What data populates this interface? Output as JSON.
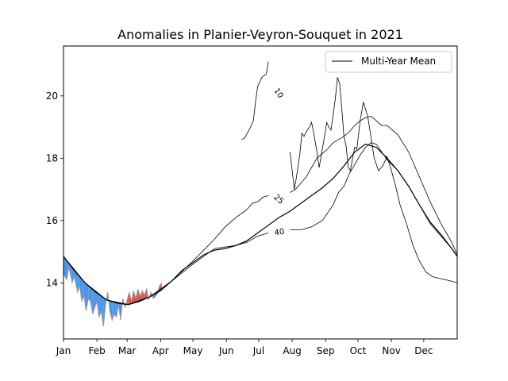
{
  "chart_data": {
    "type": "line",
    "title": "Anomalies in Planier-Veyron-Souquet in 2021",
    "xlabel": "",
    "ylabel": "",
    "xlim": [
      0,
      365
    ],
    "ylim": [
      12.2,
      21.6
    ],
    "x_tick_labels": [
      "Jan",
      "Feb",
      "Mar",
      "Apr",
      "May",
      "Jun",
      "Jul",
      "Aug",
      "Sep",
      "Oct",
      "Nov",
      "Dec"
    ],
    "x_tick_days": [
      0,
      31,
      59,
      90,
      120,
      151,
      181,
      212,
      243,
      273,
      304,
      334
    ],
    "y_ticks": [
      14,
      16,
      18,
      20
    ],
    "legend": {
      "location": "top-right",
      "entries": [
        "Multi-Year Mean"
      ]
    },
    "colors": {
      "above": "#d9534f",
      "below": "#4d96e8",
      "observed": "#999999",
      "mean": "#000000"
    },
    "mean": {
      "name": "Multi-Year Mean",
      "x": [
        0,
        10,
        20,
        30,
        40,
        50,
        60,
        70,
        80,
        90,
        100,
        110,
        120,
        130,
        140,
        150,
        160,
        170,
        180,
        190,
        200,
        210,
        220,
        230,
        240,
        250,
        260,
        270,
        280,
        290,
        300,
        310,
        320,
        330,
        340,
        350,
        360,
        365
      ],
      "y": [
        14.85,
        14.4,
        14.0,
        13.7,
        13.45,
        13.35,
        13.3,
        13.4,
        13.55,
        13.75,
        14.05,
        14.4,
        14.65,
        14.9,
        15.05,
        15.1,
        15.2,
        15.35,
        15.6,
        15.85,
        16.1,
        16.3,
        16.55,
        16.8,
        17.05,
        17.35,
        17.75,
        18.2,
        18.45,
        18.35,
        18.0,
        17.6,
        17.1,
        16.5,
        15.95,
        15.55,
        15.1,
        14.85
      ]
    },
    "observed": {
      "x": [
        0,
        3,
        5,
        8,
        10,
        13,
        15,
        17,
        19,
        21,
        23,
        25,
        27,
        29,
        31,
        33,
        35,
        37,
        39,
        41,
        43,
        45,
        47,
        49,
        51,
        53,
        55,
        57,
        59,
        61,
        63,
        65,
        67,
        69,
        71,
        73,
        75,
        77,
        79,
        81,
        83,
        85,
        87,
        89,
        91
      ],
      "y": [
        14.3,
        14.1,
        14.5,
        14.0,
        14.2,
        13.7,
        13.9,
        13.4,
        13.6,
        13.1,
        13.5,
        13.4,
        13.0,
        13.2,
        13.4,
        12.9,
        13.1,
        12.6,
        13.3,
        13.7,
        13.1,
        12.8,
        13.0,
        12.9,
        13.3,
        12.8,
        13.5,
        13.2,
        13.45,
        13.7,
        13.4,
        13.75,
        13.5,
        13.8,
        13.55,
        13.75,
        13.6,
        13.8,
        13.45,
        13.7,
        13.5,
        13.55,
        13.65,
        13.9,
        14.0
      ]
    },
    "contours": [
      {
        "level": "10",
        "label_day": 200,
        "x": [
          165,
          168,
          172,
          176,
          178,
          180,
          184,
          188,
          190,
          192,
          196,
          200,
          203,
          206,
          208,
          210,
          212,
          214,
          216,
          219,
          221,
          223,
          226,
          228,
          230,
          232,
          235,
          237,
          240,
          242,
          244,
          246,
          248,
          250,
          252,
          254,
          256,
          258,
          260,
          262,
          264,
          266,
          268,
          270,
          272,
          275,
          278,
          282,
          285,
          288,
          292,
          296,
          300,
          304,
          308,
          312,
          318,
          324,
          330,
          336,
          342,
          348,
          354,
          360,
          365
        ],
        "y": [
          18.6,
          18.65,
          18.9,
          19.2,
          19.8,
          20.3,
          20.6,
          20.7,
          21.1,
          21.05,
          20.3,
          20.1,
          19.5,
          18.6,
          18.0,
          18.2,
          17.6,
          17.0,
          17.4,
          18.1,
          18.8,
          18.7,
          18.9,
          19.0,
          19.15,
          18.8,
          18.2,
          17.7,
          18.3,
          18.7,
          19.15,
          19.0,
          18.9,
          19.4,
          19.9,
          20.6,
          20.4,
          19.6,
          18.7,
          18.4,
          17.7,
          17.6,
          18.0,
          18.35,
          18.3,
          19.2,
          19.8,
          19.35,
          18.7,
          18.0,
          17.6,
          17.75,
          18.05,
          17.6,
          17.1,
          16.5,
          15.9,
          15.2,
          14.7,
          14.35,
          14.2,
          14.15,
          14.1,
          14.05,
          14.0
        ]
      },
      {
        "level": "25",
        "label_day": 200,
        "x": [
          0,
          20,
          40,
          60,
          80,
          100,
          120,
          140,
          150,
          160,
          170,
          175,
          180,
          185,
          190,
          195,
          200,
          205,
          210,
          215,
          220,
          225,
          230,
          235,
          240,
          245,
          250,
          255,
          260,
          265,
          270,
          275,
          280,
          285,
          290,
          295,
          300,
          310,
          320,
          330,
          340,
          350,
          360,
          365
        ],
        "y": [
          14.85,
          14.0,
          13.45,
          13.3,
          13.55,
          14.05,
          14.7,
          15.4,
          15.8,
          16.1,
          16.35,
          16.55,
          16.6,
          16.75,
          16.8,
          16.85,
          16.7,
          16.8,
          16.9,
          17.0,
          17.2,
          17.4,
          17.7,
          18.0,
          18.15,
          18.3,
          18.5,
          18.6,
          18.7,
          18.85,
          19.05,
          19.2,
          19.3,
          19.35,
          19.2,
          19.05,
          19.05,
          18.75,
          18.2,
          17.4,
          16.6,
          15.9,
          15.3,
          14.9
        ]
      },
      {
        "level": "40",
        "label_day": 200,
        "x": [
          0,
          20,
          40,
          60,
          80,
          100,
          120,
          140,
          150,
          160,
          170,
          180,
          190,
          200,
          210,
          220,
          230,
          240,
          250,
          255,
          260,
          265,
          270,
          275,
          280,
          285,
          290,
          295,
          300,
          310,
          320,
          330,
          340,
          350,
          360,
          365
        ],
        "y": [
          14.85,
          14.0,
          13.45,
          13.3,
          13.55,
          14.05,
          14.6,
          15.1,
          15.15,
          15.2,
          15.3,
          15.5,
          15.6,
          15.65,
          15.7,
          15.7,
          15.8,
          16.0,
          16.5,
          16.9,
          17.1,
          17.5,
          17.8,
          18.1,
          18.35,
          18.5,
          18.45,
          18.2,
          17.95,
          17.6,
          17.1,
          16.5,
          15.9,
          15.5,
          15.1,
          14.85
        ]
      }
    ]
  }
}
